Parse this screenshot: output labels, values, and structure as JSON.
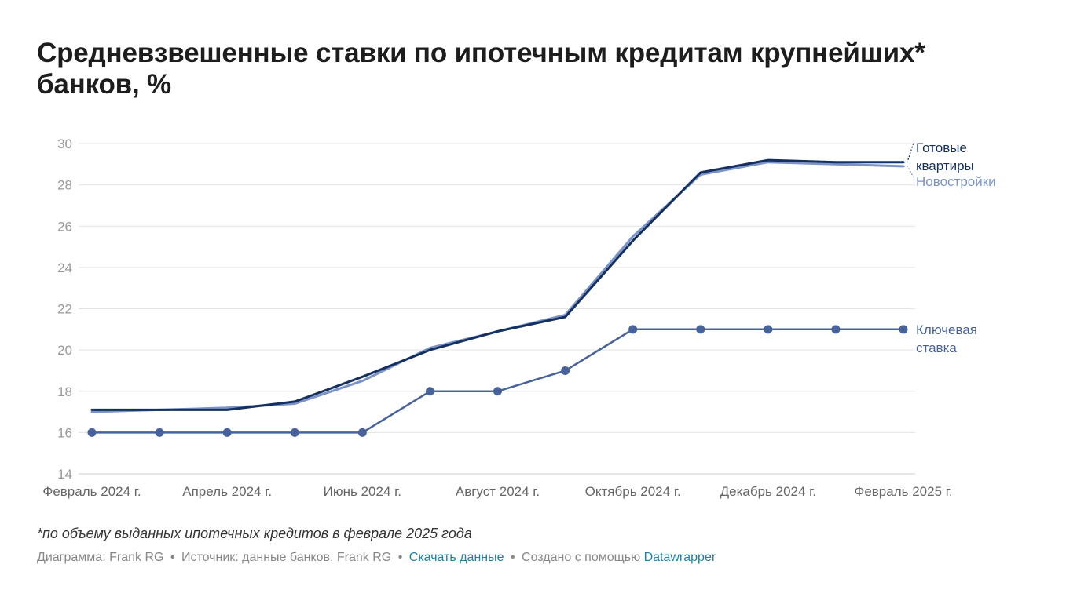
{
  "title": "Средневзвешенные ставки по ипотечным кредитам крупнейших* банков, %",
  "footnote": "*по объему выданных ипотечных кредитов в феврале 2025 года",
  "byline": {
    "chart_label": "Диаграмма: Frank RG",
    "source_label": "Источник: данные банков, Frank RG",
    "download_link": "Скачать данные",
    "made_with_label": "Создано с помощью",
    "datawrapper_link": "Datawrapper",
    "separator": "•"
  },
  "colors": {
    "ready": "#14305e",
    "new": "#7b93c9",
    "key": "#48629a",
    "grid": "#e3e3e3",
    "axis_text": "#999999",
    "x_text": "#666666"
  },
  "chart_data": {
    "type": "line",
    "x": [
      "2024-02",
      "2024-03",
      "2024-04",
      "2024-05",
      "2024-06",
      "2024-07",
      "2024-08",
      "2024-09",
      "2024-10",
      "2024-11",
      "2024-12",
      "2025-01",
      "2025-02"
    ],
    "x_tick_labels": [
      {
        "x": "2024-02",
        "label": "Февраль 2024 г."
      },
      {
        "x": "2024-04",
        "label": "Апрель 2024 г."
      },
      {
        "x": "2024-06",
        "label": "Июнь 2024 г."
      },
      {
        "x": "2024-08",
        "label": "Август 2024 г."
      },
      {
        "x": "2024-10",
        "label": "Октябрь 2024 г."
      },
      {
        "x": "2024-12",
        "label": "Декабрь 2024 г."
      },
      {
        "x": "2025-02",
        "label": "Февраль 2025 г."
      }
    ],
    "y_ticks": [
      14,
      16,
      18,
      20,
      22,
      24,
      26,
      28,
      30
    ],
    "ylim": [
      14,
      30
    ],
    "grid": true,
    "series": [
      {
        "key": "new",
        "name": "Новостройки",
        "values": [
          17.0,
          17.1,
          17.2,
          17.4,
          18.5,
          20.1,
          20.9,
          21.7,
          25.5,
          28.5,
          29.1,
          29.0,
          28.9
        ],
        "markers": false
      },
      {
        "key": "ready",
        "name": "Готовые квартиры",
        "values": [
          17.1,
          17.1,
          17.1,
          17.5,
          18.7,
          20.0,
          20.9,
          21.6,
          25.3,
          28.6,
          29.2,
          29.1,
          29.1
        ],
        "markers": false
      },
      {
        "key": "key",
        "name": "Ключевая ставка",
        "values": [
          16,
          16,
          16,
          16,
          16,
          18,
          18,
          19,
          21,
          21,
          21,
          21,
          21
        ],
        "markers": true
      }
    ],
    "labels": [
      {
        "series": "ready",
        "lines": [
          "Готовые",
          "квартиры"
        ]
      },
      {
        "series": "new",
        "lines": [
          "Новостройки"
        ]
      },
      {
        "series": "key",
        "lines": [
          "Ключевая",
          "ставка"
        ]
      }
    ]
  }
}
